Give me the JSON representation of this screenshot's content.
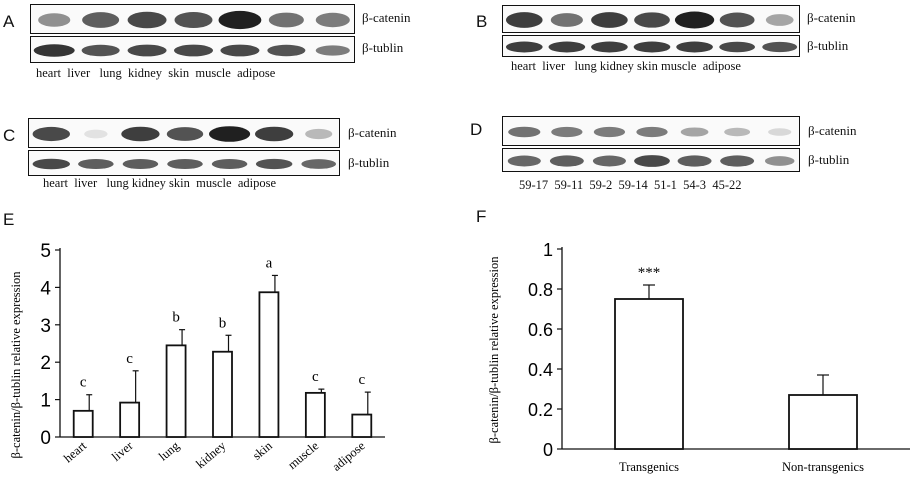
{
  "panels": {
    "A": {
      "letter": "A",
      "bands": [
        "β-catenin",
        "β-tublin"
      ],
      "lanes": [
        "heart",
        "liver",
        "lung",
        "kidney",
        "skin",
        "muscle",
        "adipose"
      ],
      "catenin_intensity": [
        0.45,
        0.7,
        0.8,
        0.75,
        1.0,
        0.6,
        0.55
      ],
      "tublin_intensity": [
        0.9,
        0.75,
        0.8,
        0.8,
        0.8,
        0.75,
        0.55
      ]
    },
    "B": {
      "letter": "B",
      "bands": [
        "β-catenin",
        "β-tublin"
      ],
      "lanes": [
        "heart",
        "liver",
        "lung",
        "kidney",
        "skin",
        "muscle",
        "adipose"
      ],
      "catenin_intensity": [
        0.85,
        0.6,
        0.85,
        0.8,
        1.0,
        0.75,
        0.35
      ],
      "tublin_intensity": [
        0.85,
        0.85,
        0.85,
        0.85,
        0.85,
        0.8,
        0.75
      ]
    },
    "C": {
      "letter": "C",
      "bands": [
        "β-catenin",
        "β-tublin"
      ],
      "lanes": [
        "heart",
        "liver",
        "lung",
        "kidney",
        "skin",
        "muscle",
        "adipose"
      ],
      "catenin_intensity": [
        0.8,
        0.05,
        0.85,
        0.75,
        1.0,
        0.85,
        0.25
      ],
      "tublin_intensity": [
        0.8,
        0.7,
        0.7,
        0.7,
        0.7,
        0.75,
        0.65
      ]
    },
    "D": {
      "letter": "D",
      "bands": [
        "β-catenin",
        "β-tublin"
      ],
      "lanes": [
        "59-17",
        "59-11",
        "59-2",
        "59-14",
        "51-1",
        "54-3",
        "45-22"
      ],
      "catenin_intensity": [
        0.6,
        0.55,
        0.55,
        0.55,
        0.35,
        0.25,
        0.1
      ],
      "tublin_intensity": [
        0.65,
        0.7,
        0.65,
        0.8,
        0.7,
        0.7,
        0.45
      ]
    },
    "E": {
      "letter": "E"
    },
    "F": {
      "letter": "F"
    }
  },
  "chart_data": [
    {
      "type": "bar",
      "ylabel": "β-catenin/β-tublin relative expression",
      "categories": [
        "heart",
        "liver",
        "lung",
        "kidney",
        "skin",
        "muscle",
        "adipose"
      ],
      "values": [
        0.7,
        0.92,
        2.45,
        2.28,
        3.87,
        1.18,
        0.6
      ],
      "errors": [
        0.43,
        0.85,
        0.42,
        0.44,
        0.45,
        0.1,
        0.6
      ],
      "annotations": [
        "c",
        "c",
        "b",
        "b",
        "a",
        "c",
        "c"
      ],
      "yticks": [
        0,
        1,
        2,
        3,
        4,
        5
      ],
      "ylim": [
        0,
        5
      ]
    },
    {
      "type": "bar",
      "ylabel": "β-catenin/β-tublin relative expression",
      "categories": [
        "Transgenics",
        "Non-transgenics"
      ],
      "values": [
        0.75,
        0.27
      ],
      "errors": [
        0.07,
        0.1
      ],
      "annotations": [
        "***",
        ""
      ],
      "yticks": [
        "0",
        "0.2",
        "0.4",
        "0.6",
        "0.8",
        "1"
      ],
      "ylim": [
        0,
        1
      ]
    }
  ]
}
